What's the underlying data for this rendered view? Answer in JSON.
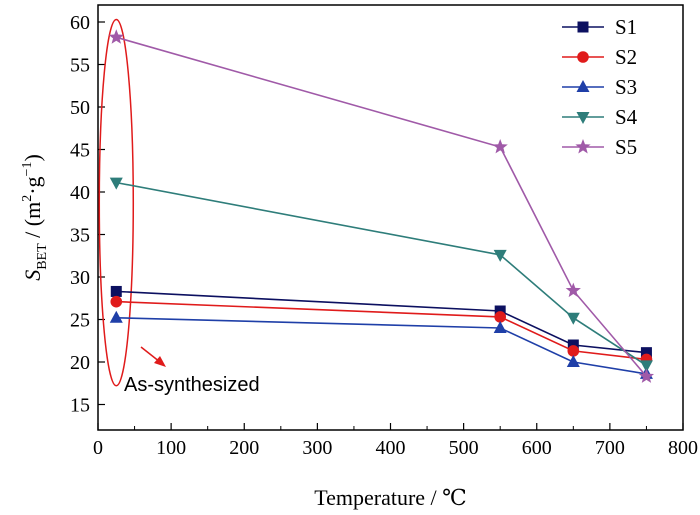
{
  "chart_data": {
    "type": "line",
    "xlabel": "Temperature / ℃",
    "ylabel": {
      "symbol": "S",
      "subscript": "BET",
      "unit_prefix": " / (m",
      "unit_sup1": "2",
      "unit_mid": "·g",
      "unit_sup2": "−1",
      "unit_suffix": ")"
    },
    "xlim": [
      0,
      800
    ],
    "ylim": [
      12,
      62
    ],
    "xticks": [
      0,
      100,
      200,
      300,
      400,
      500,
      600,
      700,
      800
    ],
    "yticks": [
      15,
      20,
      25,
      30,
      35,
      40,
      45,
      50,
      55,
      60
    ],
    "grid": false,
    "legend_position": "top-right",
    "x": [
      25,
      550,
      650,
      750
    ],
    "series": [
      {
        "name": "S1",
        "values": [
          28.3,
          26.0,
          22.0,
          21.1
        ],
        "color": "#0c1060",
        "marker": "square"
      },
      {
        "name": "S2",
        "values": [
          27.1,
          25.3,
          21.3,
          20.3
        ],
        "color": "#e01b1b",
        "marker": "circle"
      },
      {
        "name": "S3",
        "values": [
          25.2,
          24.0,
          20.0,
          18.6
        ],
        "color": "#1f3fa8",
        "marker": "triangle-up"
      },
      {
        "name": "S4",
        "values": [
          41.1,
          32.6,
          25.2,
          19.6
        ],
        "color": "#2e7d7a",
        "marker": "triangle-down"
      },
      {
        "name": "S5",
        "values": [
          58.2,
          45.3,
          28.4,
          18.3
        ],
        "color": "#a05aa8",
        "marker": "star"
      }
    ],
    "annotation": {
      "text": "As-synthesized",
      "color": "#e01b1b"
    }
  }
}
